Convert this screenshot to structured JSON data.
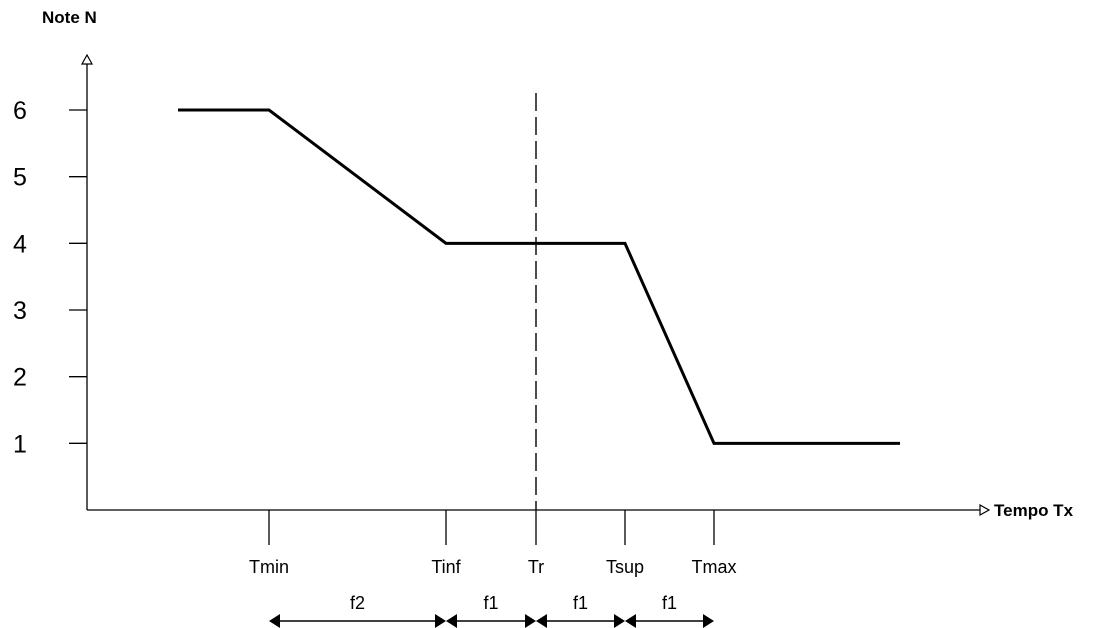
{
  "chart_data": {
    "type": "line",
    "ylabel": "Note N",
    "xlabel": "Tempo Tx",
    "yticks": [
      "1",
      "2",
      "3",
      "4",
      "5",
      "6"
    ],
    "ylim": [
      0,
      6
    ],
    "xticks": [
      "Tmin",
      "Tinf",
      "Tr",
      "Tsup",
      "Tmax"
    ],
    "series": [
      {
        "points": [
          {
            "x": "",
            "y": 6
          },
          {
            "x": "Tmin",
            "y": 6
          },
          {
            "x": "Tinf",
            "y": 4
          },
          {
            "x": "Tsup",
            "y": 4
          },
          {
            "x": "Tmax",
            "y": 1
          },
          {
            "x": "",
            "y": 1
          }
        ]
      }
    ],
    "reference_line": {
      "x": "Tr",
      "style": "dashed"
    },
    "intervals": [
      {
        "from": "Tmin",
        "to": "Tinf",
        "label": "f2"
      },
      {
        "from": "Tinf",
        "to": "Tr",
        "label": "f1"
      },
      {
        "from": "Tr",
        "to": "Tsup",
        "label": "f1"
      },
      {
        "from": "Tsup",
        "to": "Tmax",
        "label": "f1"
      }
    ],
    "grid": false
  }
}
